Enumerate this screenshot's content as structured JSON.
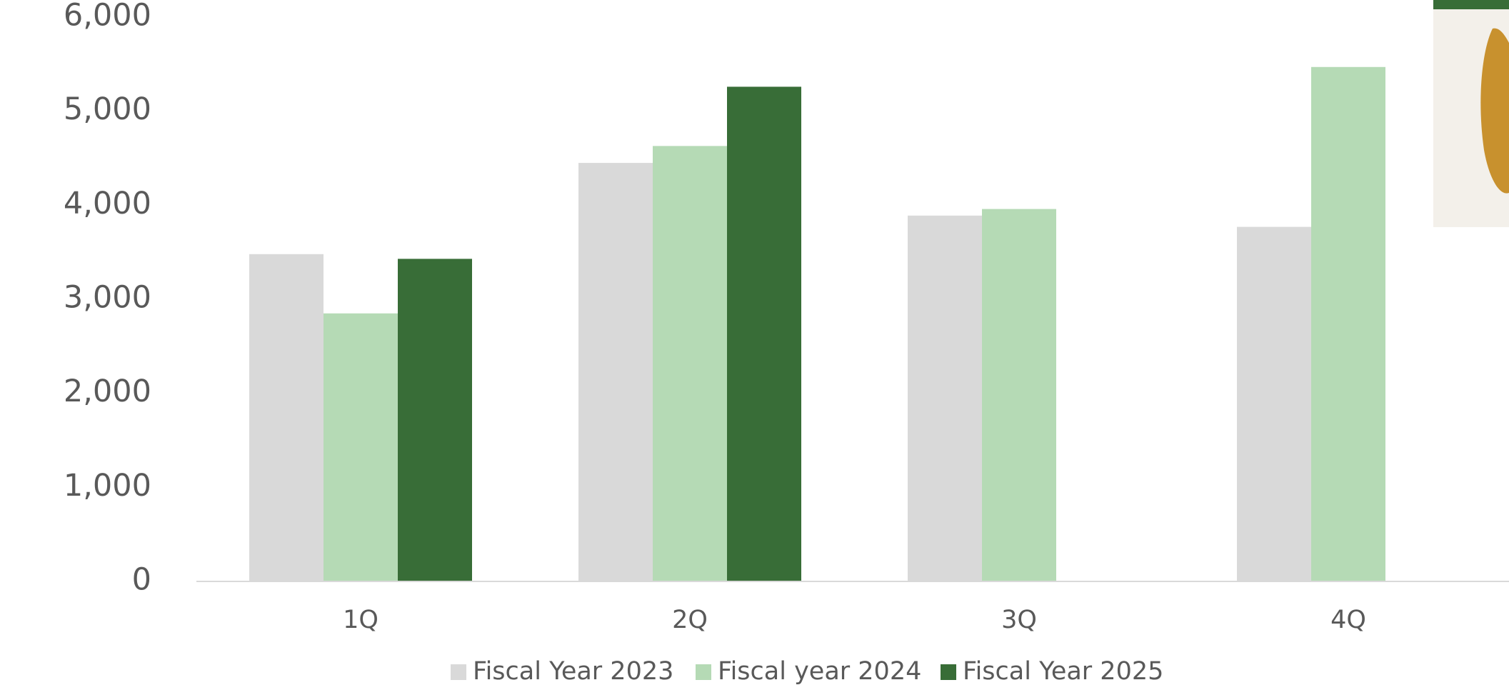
{
  "chart_data": {
    "type": "bar",
    "categories": [
      "1Q",
      "2Q",
      "3Q",
      "4Q"
    ],
    "series": [
      {
        "name": "Fiscal Year 2023",
        "color": "#d9d9d9",
        "values": [
          3480,
          4450,
          3890,
          3770
        ]
      },
      {
        "name": "Fiscal year 2024",
        "color": "#b5dab5",
        "values": [
          2850,
          4630,
          3960,
          5470
        ]
      },
      {
        "name": "Fiscal Year 2025",
        "color": "#386d37",
        "values": [
          3430,
          5260,
          null,
          null
        ]
      }
    ],
    "ylim": [
      0,
      6000
    ],
    "yticks": [
      0,
      {
        "value": 1000,
        "label": "1,000"
      },
      {
        "value": 2000,
        "label": "2,000"
      },
      {
        "value": 3000,
        "label": "3,000"
      },
      {
        "value": 4000,
        "label": "4,000"
      },
      {
        "value": 5000,
        "label": "5,000"
      },
      {
        "value": 6000,
        "label": "6,000"
      }
    ],
    "legend": "bottom"
  }
}
